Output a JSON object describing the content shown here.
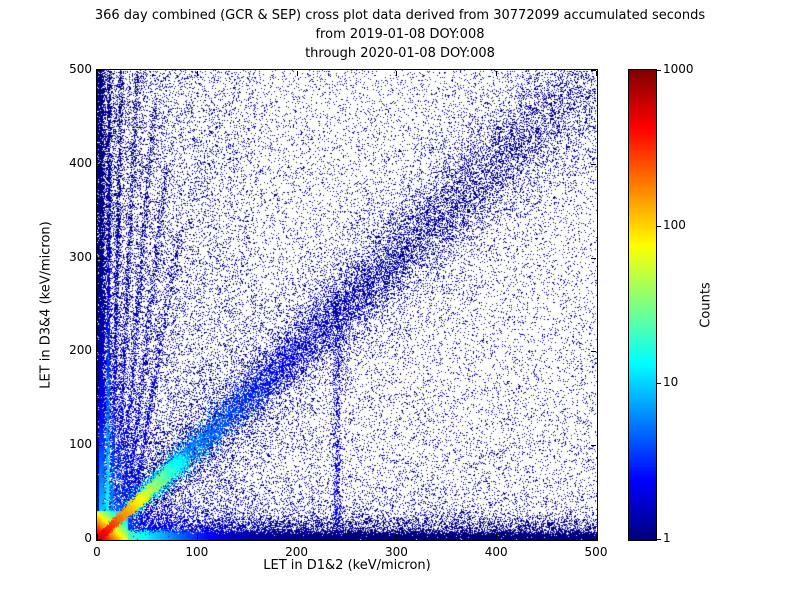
{
  "chart_data": {
    "type": "scatter",
    "title": "366 day combined (GCR & SEP) cross plot data derived from 30772099 accumulated seconds",
    "subtitle_from": "from 2019-01-08 DOY:008",
    "subtitle_through": "through 2020-01-08 DOY:008",
    "xlabel": "LET in D1&2 (keV/micron)",
    "ylabel": "LET in D3&4 (keV/micron)",
    "xlim": [
      0,
      500
    ],
    "ylim": [
      0,
      500
    ],
    "x_ticks": [
      "0",
      "100",
      "200",
      "300",
      "400",
      "500"
    ],
    "y_ticks": [
      "0",
      "100",
      "200",
      "300",
      "400",
      "500"
    ],
    "grid": false,
    "background_color": "#ffffff",
    "colormap": "jet",
    "marker_size_px": 1,
    "colorbar": {
      "label": "Counts",
      "scale": "log",
      "min": 1,
      "max": 1000,
      "ticks": [
        "1",
        "10",
        "100",
        "1000"
      ],
      "position": "right"
    },
    "seed": 20190108,
    "density_features": [
      {
        "name": "background-sparse",
        "type": "uniform",
        "n": 15000,
        "count": 1
      },
      {
        "name": "lower-left-haze",
        "type": "power",
        "n": 26000,
        "x_scale": 500,
        "x_pow": 2.6,
        "y_scale": 500,
        "y_pow": 2.6,
        "count_base": 1,
        "count_amp": 3,
        "count_falloff": 80
      },
      {
        "name": "upper-left-scatter",
        "type": "power",
        "n": 7000,
        "x_scale": 160,
        "x_pow": 2.2,
        "y_scale": 500,
        "y_pow": 0.85,
        "count_base": 1,
        "count_amp": 0,
        "count_falloff": 1
      },
      {
        "name": "diagonal-halo",
        "type": "diagonal",
        "n": 9000,
        "t_pow": 1.2,
        "t_max": 500,
        "sigma_base": 10,
        "sigma_grow": 0.09,
        "count_base": 1,
        "count_amp": 0,
        "count_falloff": 1
      },
      {
        "name": "main-diagonal-band",
        "type": "diagonal",
        "n": 17000,
        "t_pow": 1.4,
        "t_max": 500,
        "sigma_base": 3,
        "sigma_grow": 0.045,
        "count_base": 1,
        "count_amp": 20,
        "count_falloff": 70
      },
      {
        "name": "streak-x10",
        "type": "streak",
        "x0": 10,
        "slope": 0.004,
        "y_max": 500,
        "y_pow": 1.7,
        "sigma": 1.0,
        "n": 3000,
        "count_base": 1,
        "count_amp": 20,
        "count_falloff": 90
      },
      {
        "name": "streak-x14",
        "type": "streak",
        "x0": 14,
        "slope": 0.02,
        "y_max": 500,
        "y_pow": 1.6,
        "sigma": 1.2,
        "n": 1800,
        "count_base": 1,
        "count_amp": 8,
        "count_falloff": 90
      },
      {
        "name": "streak-x18",
        "type": "streak",
        "x0": 18,
        "slope": 0.045,
        "y_max": 500,
        "y_pow": 1.6,
        "sigma": 1.5,
        "n": 1500,
        "count_base": 1,
        "count_amp": 5,
        "count_falloff": 100
      },
      {
        "name": "streak-x22",
        "type": "streak",
        "x0": 22,
        "slope": 0.075,
        "y_max": 460,
        "y_pow": 1.6,
        "sigma": 1.6,
        "n": 1300,
        "count_base": 1,
        "count_amp": 4,
        "count_falloff": 110
      },
      {
        "name": "streak-x26",
        "type": "streak",
        "x0": 26,
        "slope": 0.11,
        "y_max": 400,
        "y_pow": 1.6,
        "sigma": 1.8,
        "n": 1200,
        "count_base": 1,
        "count_amp": 3,
        "count_falloff": 120
      },
      {
        "name": "streak-x30",
        "type": "streak",
        "x0": 30,
        "slope": 0.16,
        "y_max": 330,
        "y_pow": 1.5,
        "sigma": 2.0,
        "n": 1100,
        "count_base": 1,
        "count_amp": 3,
        "count_falloff": 120
      },
      {
        "name": "streak-x240",
        "type": "streak",
        "x0": 240,
        "slope": 0.0,
        "y_max": 265,
        "y_pow": 1.2,
        "sigma": 2.5,
        "n": 900,
        "count_base": 1,
        "count_amp": 1.5,
        "count_falloff": 200
      },
      {
        "name": "bottom-band-wide",
        "type": "hband",
        "y0": 10,
        "sigma": 9,
        "n": 6000,
        "x_pow": 1.2,
        "x_max": 500,
        "count_base": 1,
        "count_amp": 4,
        "count_falloff": 60
      },
      {
        "name": "bottom-band",
        "type": "hband",
        "y0": 3,
        "sigma": 3,
        "n": 12000,
        "x_pow": 1.6,
        "x_max": 500,
        "count_base": 1,
        "count_amp": 60,
        "count_falloff": 30
      },
      {
        "name": "left-edge-band",
        "type": "vband",
        "x0": 2,
        "sigma": 2.5,
        "n": 8000,
        "y_pow": 2.0,
        "y_max": 500,
        "count_base": 1,
        "count_amp": 14,
        "count_falloff": 60
      },
      {
        "name": "origin-hot-core",
        "type": "power",
        "n": 26000,
        "x_scale": 30,
        "x_pow": 2.4,
        "y_scale": 30,
        "y_pow": 2.4,
        "count_base": 2,
        "count_amp": 900,
        "count_falloff": 11
      },
      {
        "name": "origin-diagonal-streak",
        "type": "diagonal",
        "n": 8000,
        "t_pow": 1.3,
        "t_max": 85,
        "sigma_base": 1.2,
        "sigma_grow": 0.03,
        "count_base": 3,
        "count_amp": 600,
        "count_falloff": 20
      }
    ]
  }
}
